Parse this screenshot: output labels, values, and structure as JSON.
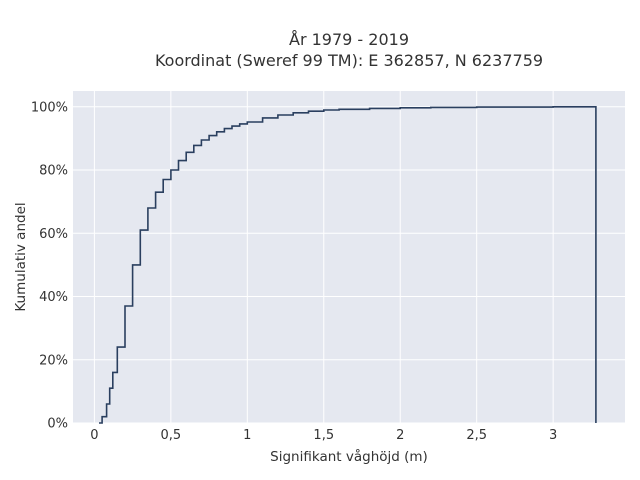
{
  "chart_data": {
    "type": "line",
    "step": true,
    "title": "År 1979 - 2019",
    "subtitle": "Koordinat (Sweref 99 TM): E 362857, N 6237759",
    "xlabel": "Signifikant våghöjd (m)",
    "ylabel": "Kumulativ andel",
    "xlim": [
      -0.14,
      3.47
    ],
    "ylim": [
      0,
      1.05
    ],
    "x_ticks": [
      0,
      0.5,
      1,
      1.5,
      2,
      2.5,
      3
    ],
    "x_tick_labels": [
      "0",
      "0,5",
      "1",
      "1,5",
      "2",
      "2,5",
      "3"
    ],
    "y_ticks": [
      0,
      0.2,
      0.4,
      0.6,
      0.8,
      1.0
    ],
    "y_tick_labels": [
      "0%",
      "20%",
      "40%",
      "60%",
      "80%",
      "100%"
    ],
    "grid": true,
    "colors": {
      "plot_bg": "#e5e8f0",
      "grid": "#ffffff",
      "line": "#2a3f5f",
      "text": "#333333"
    },
    "series": [
      {
        "x": [
          0.03,
          0.05,
          0.08,
          0.1,
          0.12,
          0.15,
          0.2,
          0.25,
          0.3,
          0.35,
          0.4,
          0.45,
          0.5,
          0.55,
          0.6,
          0.65,
          0.7,
          0.75,
          0.8,
          0.85,
          0.9,
          0.95,
          1.0,
          1.1,
          1.2,
          1.3,
          1.4,
          1.5,
          1.6,
          1.8,
          2.0,
          2.2,
          2.5,
          3.0,
          3.28,
          3.28
        ],
        "y": [
          0.0,
          0.02,
          0.06,
          0.11,
          0.16,
          0.24,
          0.37,
          0.5,
          0.61,
          0.68,
          0.73,
          0.77,
          0.8,
          0.83,
          0.856,
          0.878,
          0.895,
          0.909,
          0.921,
          0.931,
          0.939,
          0.946,
          0.952,
          0.965,
          0.974,
          0.981,
          0.986,
          0.99,
          0.992,
          0.995,
          0.997,
          0.998,
          0.999,
          1.0,
          1.0,
          0.0
        ]
      }
    ]
  }
}
